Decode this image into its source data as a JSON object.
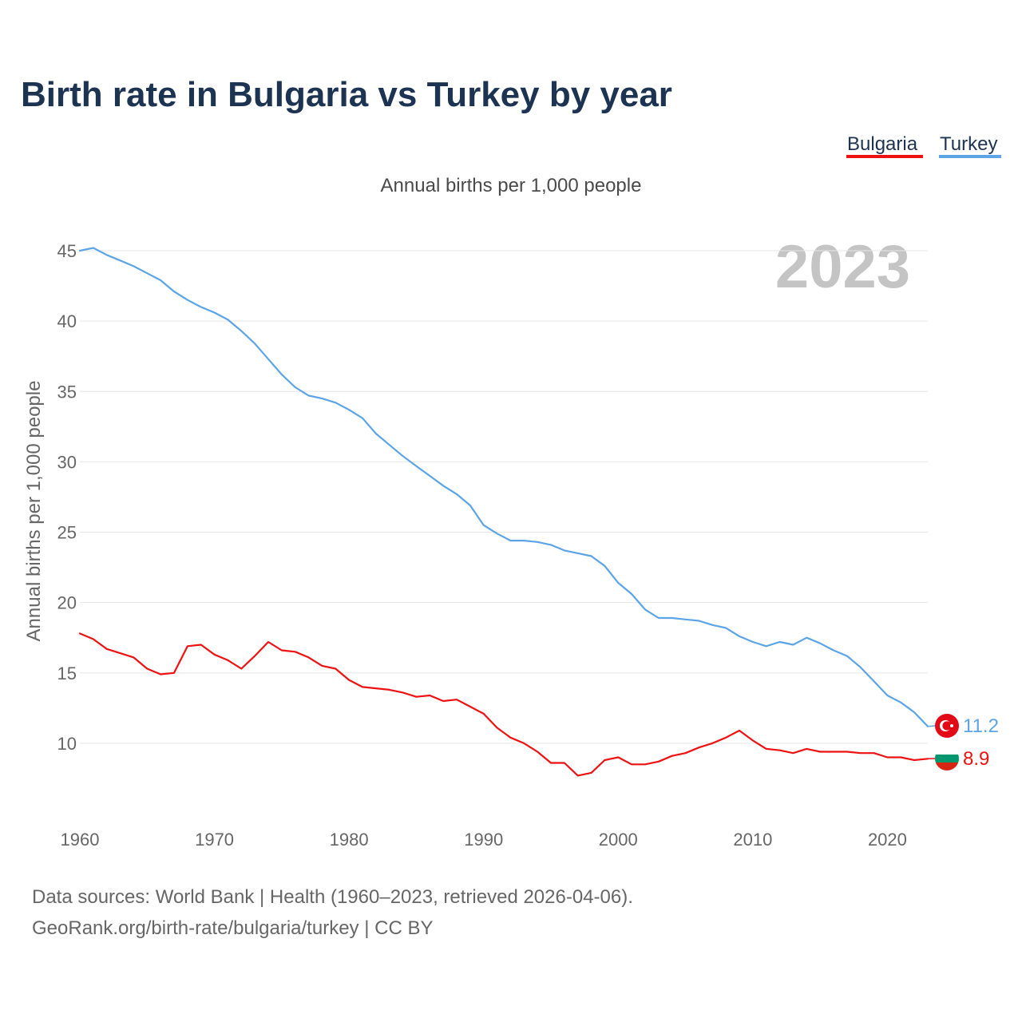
{
  "title": "Birth rate in Bulgaria vs Turkey by year",
  "legend": {
    "items": [
      {
        "label": "Bulgaria",
        "color": "#ee1111"
      },
      {
        "label": "Turkey",
        "color": "#5ba4e6"
      }
    ]
  },
  "footer": {
    "line1": "Data sources: World Bank | Health (1960–2023, retrieved 2026-04-06).",
    "line2": "GeoRank.org/birth-rate/bulgaria/turkey | CC BY"
  },
  "chart_data": {
    "type": "line",
    "title": "Birth rate in Bulgaria vs Turkey by year",
    "subtitle": "Annual births per 1,000 people",
    "ylabel": "Annual births per 1,000 people",
    "xlabel": "",
    "watermark_year": "2023",
    "ylim": [
      5,
      45
    ],
    "xlim": [
      1960,
      2023
    ],
    "yticks": [
      10,
      15,
      20,
      25,
      30,
      35,
      40,
      45
    ],
    "xticks": [
      1960,
      1970,
      1980,
      1990,
      2000,
      2010,
      2020
    ],
    "grid": true,
    "x": [
      1960,
      1961,
      1962,
      1963,
      1964,
      1965,
      1966,
      1967,
      1968,
      1969,
      1970,
      1971,
      1972,
      1973,
      1974,
      1975,
      1976,
      1977,
      1978,
      1979,
      1980,
      1981,
      1982,
      1983,
      1984,
      1985,
      1986,
      1987,
      1988,
      1989,
      1990,
      1991,
      1992,
      1993,
      1994,
      1995,
      1996,
      1997,
      1998,
      1999,
      2000,
      2001,
      2002,
      2003,
      2004,
      2005,
      2006,
      2007,
      2008,
      2009,
      2010,
      2011,
      2012,
      2013,
      2014,
      2015,
      2016,
      2017,
      2018,
      2019,
      2020,
      2021,
      2022,
      2023
    ],
    "series": [
      {
        "name": "Turkey",
        "color": "#5ba4e6",
        "end_label": "11.2",
        "flag_icon": "turkey-flag-icon",
        "values": [
          45.0,
          45.2,
          44.7,
          44.3,
          43.9,
          43.4,
          42.9,
          42.1,
          41.5,
          41.0,
          40.6,
          40.1,
          39.3,
          38.4,
          37.3,
          36.2,
          35.3,
          34.7,
          34.5,
          34.2,
          33.7,
          33.1,
          32.0,
          31.2,
          30.4,
          29.7,
          29.0,
          28.3,
          27.7,
          26.9,
          25.5,
          24.9,
          24.4,
          24.4,
          24.3,
          24.1,
          23.7,
          23.5,
          23.3,
          22.6,
          21.4,
          20.6,
          19.5,
          18.9,
          18.9,
          18.8,
          18.7,
          18.4,
          18.2,
          17.6,
          17.2,
          16.9,
          17.2,
          17.0,
          17.5,
          17.1,
          16.6,
          16.2,
          15.4,
          14.4,
          13.4,
          12.9,
          12.2,
          11.2
        ]
      },
      {
        "name": "Bulgaria",
        "color": "#ee1111",
        "end_label": "8.9",
        "flag_icon": "bulgaria-flag-icon",
        "values": [
          17.8,
          17.4,
          16.7,
          16.4,
          16.1,
          15.3,
          14.9,
          15.0,
          16.9,
          17.0,
          16.3,
          15.9,
          15.3,
          16.2,
          17.2,
          16.6,
          16.5,
          16.1,
          15.5,
          15.3,
          14.5,
          14.0,
          13.9,
          13.8,
          13.6,
          13.3,
          13.4,
          13.0,
          13.1,
          12.6,
          12.1,
          11.1,
          10.4,
          10.0,
          9.4,
          8.6,
          8.6,
          7.7,
          7.9,
          8.8,
          9.0,
          8.5,
          8.5,
          8.7,
          9.1,
          9.3,
          9.7,
          10.0,
          10.4,
          10.9,
          10.2,
          9.6,
          9.5,
          9.3,
          9.6,
          9.4,
          9.4,
          9.4,
          9.3,
          9.3,
          9.0,
          9.0,
          8.8,
          8.9
        ]
      }
    ]
  }
}
